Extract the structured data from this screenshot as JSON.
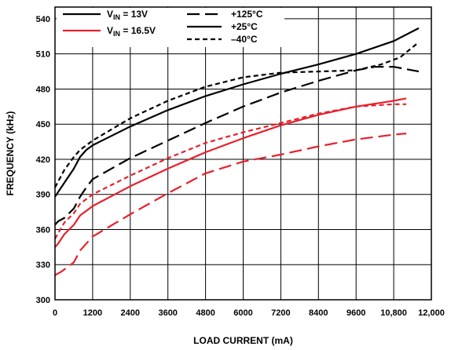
{
  "chart_data": {
    "type": "line",
    "title": "",
    "xlabel": "LOAD CURRENT (mA)",
    "ylabel": "FREQUENCY (kHz)",
    "xlim": [
      0,
      12000
    ],
    "ylim": [
      300,
      550
    ],
    "x_ticks": [
      0,
      1200,
      2400,
      3600,
      4800,
      6000,
      7200,
      8400,
      9600,
      10800,
      12000
    ],
    "x_tick_labels": [
      "0",
      "1200",
      "2400",
      "3600",
      "4800",
      "6000",
      "7200",
      "8400",
      "9600",
      "10,800",
      "12,000"
    ],
    "y_ticks": [
      300,
      330,
      360,
      390,
      420,
      450,
      480,
      510,
      540
    ],
    "y_tick_labels": [
      "300",
      "330",
      "360",
      "390",
      "420",
      "450",
      "480",
      "510",
      "540"
    ],
    "grid": true,
    "legend_placement": "top",
    "colors": {
      "vin_13": "#000000",
      "vin_16_5": "#e8202a"
    },
    "legend": {
      "vin": [
        {
          "prefix": "V",
          "sub": "IN",
          "suffix": " = 13V",
          "color": "#000000"
        },
        {
          "prefix": "V",
          "sub": "IN",
          "suffix": " = 16.5V",
          "color": "#e8202a"
        }
      ],
      "temps": [
        {
          "label": "+125°C",
          "dash": "long-dash"
        },
        {
          "label": "+25°C",
          "dash": "solid"
        },
        {
          "label": "–40°C",
          "dash": "short-dash"
        }
      ]
    },
    "series": [
      {
        "name": "VIN = 13V, +25°C",
        "vin": "13V",
        "temp": "+25°C",
        "dash": "solid",
        "color": "#000000",
        "x": [
          0,
          100,
          300,
          600,
          800,
          1000,
          1200,
          2400,
          3600,
          4800,
          6000,
          7200,
          8400,
          9600,
          10800,
          11600
        ],
        "y": [
          388,
          392,
          400,
          412,
          422,
          428,
          432,
          448,
          462,
          474,
          484,
          493,
          501,
          510,
          521,
          532
        ]
      },
      {
        "name": "VIN = 13V, –40°C",
        "vin": "13V",
        "temp": "–40°C",
        "dash": "short-dash",
        "color": "#000000",
        "x": [
          0,
          100,
          300,
          600,
          800,
          1000,
          1200,
          2400,
          3600,
          4800,
          6000,
          7200,
          8400,
          9600,
          10400,
          11000,
          11600
        ],
        "y": [
          396,
          401,
          411,
          422,
          428,
          432,
          436,
          455,
          470,
          482,
          490,
          494,
          495,
          496,
          501,
          507,
          520
        ]
      },
      {
        "name": "VIN = 13V, +125°C",
        "vin": "13V",
        "temp": "+125°C",
        "dash": "long-dash",
        "color": "#000000",
        "x": [
          0,
          100,
          300,
          600,
          800,
          1000,
          1200,
          2400,
          3600,
          4800,
          6000,
          7200,
          8400,
          9600,
          10200,
          10800,
          11600
        ],
        "y": [
          364,
          367,
          370,
          378,
          388,
          396,
          403,
          421,
          436,
          451,
          465,
          477,
          487,
          496,
          499,
          499,
          495
        ]
      },
      {
        "name": "VIN = 16.5V, +25°C",
        "vin": "16.5V",
        "temp": "+25°C",
        "dash": "solid",
        "color": "#e8202a",
        "x": [
          0,
          100,
          300,
          600,
          800,
          1000,
          1200,
          2400,
          3600,
          4800,
          6000,
          7200,
          8400,
          9600,
          10800,
          11200
        ],
        "y": [
          345,
          348,
          356,
          364,
          372,
          376,
          380,
          397,
          412,
          426,
          438,
          449,
          458,
          465,
          470,
          472
        ]
      },
      {
        "name": "VIN = 16.5V, –40°C",
        "vin": "16.5V",
        "temp": "–40°C",
        "dash": "short-dash",
        "color": "#e8202a",
        "x": [
          0,
          100,
          300,
          600,
          800,
          1000,
          1200,
          2400,
          3600,
          4800,
          6000,
          7200,
          8400,
          9600,
          10800,
          11200
        ],
        "y": [
          352,
          357,
          366,
          374,
          382,
          386,
          390,
          406,
          421,
          434,
          443,
          451,
          459,
          465,
          467,
          467
        ]
      },
      {
        "name": "VIN = 16.5V, +125°C",
        "vin": "16.5V",
        "temp": "+125°C",
        "dash": "long-dash",
        "color": "#e8202a",
        "x": [
          0,
          200,
          600,
          800,
          1200,
          2400,
          3600,
          4800,
          6000,
          7200,
          8400,
          9600,
          10800,
          11200
        ],
        "y": [
          321,
          324,
          332,
          342,
          354,
          373,
          391,
          408,
          418,
          424,
          431,
          437,
          441,
          442
        ]
      }
    ]
  }
}
